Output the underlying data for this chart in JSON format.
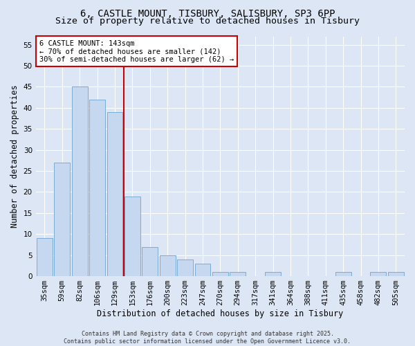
{
  "title_line1": "6, CASTLE MOUNT, TISBURY, SALISBURY, SP3 6PP",
  "title_line2": "Size of property relative to detached houses in Tisbury",
  "xlabel": "Distribution of detached houses by size in Tisbury",
  "ylabel": "Number of detached properties",
  "categories": [
    "35sqm",
    "59sqm",
    "82sqm",
    "106sqm",
    "129sqm",
    "153sqm",
    "176sqm",
    "200sqm",
    "223sqm",
    "247sqm",
    "270sqm",
    "294sqm",
    "317sqm",
    "341sqm",
    "364sqm",
    "388sqm",
    "411sqm",
    "435sqm",
    "458sqm",
    "482sqm",
    "505sqm"
  ],
  "values": [
    9,
    27,
    45,
    42,
    39,
    19,
    7,
    5,
    4,
    3,
    1,
    1,
    0,
    1,
    0,
    0,
    0,
    1,
    0,
    1,
    1
  ],
  "bar_color": "#c5d8ef",
  "bar_edge_color": "#7aadd4",
  "vline_color": "#cc0000",
  "annotation_box_text": "6 CASTLE MOUNT: 143sqm\n← 70% of detached houses are smaller (142)\n30% of semi-detached houses are larger (62) →",
  "annotation_box_color": "#ffffff",
  "annotation_box_edge_color": "#cc0000",
  "ylim": [
    0,
    57
  ],
  "yticks": [
    0,
    5,
    10,
    15,
    20,
    25,
    30,
    35,
    40,
    45,
    50,
    55
  ],
  "background_color": "#dce6f5",
  "grid_color": "#ffffff",
  "footer_text": "Contains HM Land Registry data © Crown copyright and database right 2025.\nContains public sector information licensed under the Open Government Licence v3.0.",
  "title_fontsize": 10,
  "axis_label_fontsize": 8.5,
  "tick_fontsize": 7.5,
  "annotation_fontsize": 7.5,
  "footer_fontsize": 6
}
